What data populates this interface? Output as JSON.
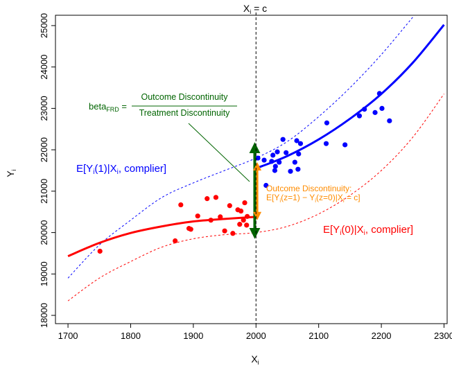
{
  "chart_data": {
    "type": "scatter",
    "title": "",
    "xlabel": "X",
    "xlabel_sub": "i",
    "ylabel": "Y",
    "ylabel_sub": "i",
    "xlim": [
      1680,
      2305
    ],
    "ylim": [
      17800,
      25250
    ],
    "xticks": [
      1700,
      1800,
      1900,
      2000,
      2100,
      2200,
      2300
    ],
    "yticks": [
      18000,
      19000,
      20000,
      21000,
      22000,
      23000,
      24000,
      25000
    ],
    "cutoff": {
      "x": 2000,
      "label_main": "X",
      "label_sub": "i",
      "label_rest": " = c"
    },
    "colors": {
      "treated": "#0000ff",
      "control": "#ff0000",
      "treatment_arrow": "#006400",
      "outcome_arrow": "#ff8c00",
      "formula": "#006400"
    },
    "series": [
      {
        "name": "E[Yi(1)|Xi, complier]",
        "color": "#0000ff",
        "style": "dashed",
        "x": [
          1700,
          1750,
          1800,
          1850,
          1900,
          1950,
          2000,
          2050,
          2100,
          2150,
          2200,
          2250
        ],
        "values": [
          18900,
          19700,
          20300,
          20850,
          21200,
          21500,
          21800,
          22200,
          22800,
          23500,
          24300,
          25200
        ]
      },
      {
        "name": "E[Yi(1)|Xi, complier]",
        "color": "#0000ff",
        "style": "solid",
        "x": [
          2000,
          2050,
          2100,
          2150,
          2200,
          2250,
          2300
        ],
        "values": [
          21550,
          21850,
          22250,
          22750,
          23350,
          24100,
          25020
        ]
      },
      {
        "name": "E[Yi(0)|Xi, complier]",
        "color": "#ff0000",
        "style": "dashed",
        "x": [
          1700,
          1750,
          1800,
          1850,
          1900,
          1950,
          2000,
          2050,
          2100,
          2150,
          2200,
          2250,
          2300
        ],
        "values": [
          18350,
          18900,
          19300,
          19650,
          19850,
          19950,
          20000,
          20150,
          20450,
          20900,
          21500,
          22300,
          23350
        ]
      },
      {
        "name": "E[Yi(0)|Xi, complier]",
        "color": "#ff0000",
        "style": "solid",
        "x": [
          1700,
          1750,
          1800,
          1850,
          1900,
          1950,
          2000
        ],
        "values": [
          19430,
          19750,
          19990,
          20150,
          20270,
          20330,
          20380
        ]
      }
    ],
    "points_control": [
      [
        1751,
        19550
      ],
      [
        1871,
        19800
      ],
      [
        1880,
        20670
      ],
      [
        1893,
        20100
      ],
      [
        1896,
        20080
      ],
      [
        1907,
        20400
      ],
      [
        1922,
        20820
      ],
      [
        1928,
        20300
      ],
      [
        1936,
        20850
      ],
      [
        1943,
        20380
      ],
      [
        1950,
        20040
      ],
      [
        1958,
        20650
      ],
      [
        1963,
        19980
      ],
      [
        1971,
        20550
      ],
      [
        1974,
        20200
      ],
      [
        1976,
        20520
      ],
      [
        1980,
        20300
      ],
      [
        1982,
        20720
      ],
      [
        1985,
        20180
      ],
      [
        1986,
        20390
      ]
    ],
    "points_treated": [
      [
        2003,
        21800
      ],
      [
        2013,
        21750
      ],
      [
        2016,
        21140
      ],
      [
        2025,
        21720
      ],
      [
        2027,
        21870
      ],
      [
        2030,
        21500
      ],
      [
        2031,
        21600
      ],
      [
        2034,
        21950
      ],
      [
        2037,
        21700
      ],
      [
        2043,
        22250
      ],
      [
        2048,
        21930
      ],
      [
        2055,
        21480
      ],
      [
        2062,
        21700
      ],
      [
        2065,
        22220
      ],
      [
        2067,
        21530
      ],
      [
        2068,
        21900
      ],
      [
        2071,
        22150
      ],
      [
        2112,
        22150
      ],
      [
        2113,
        22650
      ],
      [
        2142,
        22120
      ],
      [
        2165,
        22820
      ],
      [
        2173,
        22980
      ],
      [
        2190,
        22900
      ],
      [
        2197,
        23360
      ],
      [
        2201,
        23000
      ],
      [
        2213,
        22700
      ]
    ],
    "treatment_arrow": {
      "x": 1998,
      "y_from": 19980,
      "y_to": 22050
    },
    "outcome_arrow": {
      "x": 2002,
      "y_from": 20400,
      "y_to": 21600
    },
    "annotations": {
      "formula_lhs": "beta",
      "formula_lhs_sub": "FRD",
      "formula_eq": " = ",
      "numerator": "Outcome Discontinuity",
      "denominator": "Treatment Discontinuity",
      "outcome_label": "Outcome Discontinuity:",
      "outcome_formula_parts": [
        "E[Y",
        "i",
        "(z=1) − Y",
        "i",
        "(z=0)|X",
        "i",
        " = c]"
      ],
      "treated_label_parts": [
        "E[Y",
        "i",
        "(1)|X",
        "i",
        ", complier]"
      ],
      "control_label_parts": [
        "E[Y",
        "i",
        "(0)|X",
        "i",
        ", complier]"
      ]
    }
  }
}
